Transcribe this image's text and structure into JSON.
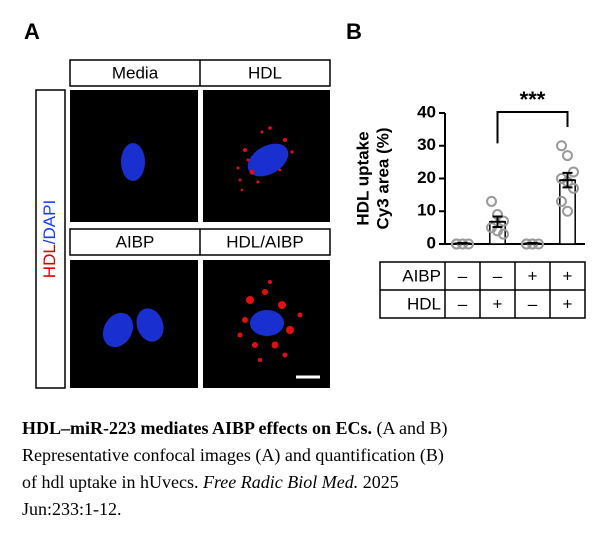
{
  "panel_a": {
    "label": "A",
    "headers": [
      "Media",
      "HDL",
      "AIBP",
      "HDL/AIBP"
    ],
    "stain": [
      "HDL",
      "/DAPI"
    ]
  },
  "panel_b": {
    "label": "B"
  },
  "chart_data": {
    "type": "bar",
    "ylabel": [
      "HDL uptake",
      "Cy3 area (%)"
    ],
    "categories": [
      null,
      null,
      null,
      null
    ],
    "values": [
      0.2,
      6.8,
      0.2,
      19.5
    ],
    "errors": [
      0.1,
      1.6,
      0.1,
      2.2
    ],
    "points": [
      [
        0,
        0,
        0,
        0,
        0
      ],
      [
        13,
        9,
        7,
        5,
        4,
        3
      ],
      [
        0,
        0,
        0,
        0,
        0
      ],
      [
        30,
        27,
        22,
        20,
        19,
        17,
        13,
        10
      ]
    ],
    "bar_color": "#ffffff",
    "edge_color": "#000000",
    "point_color": "#9a9a9a",
    "ylim": [
      0,
      40
    ],
    "yticks": [
      0,
      10,
      20,
      30,
      40
    ],
    "annotation": "***",
    "table": [
      {
        "name": "AIBP",
        "signs": [
          "–",
          "–",
          "+",
          "+"
        ]
      },
      {
        "name": "HDL",
        "signs": [
          "–",
          "+",
          "–",
          "+"
        ]
      }
    ]
  },
  "caption": {
    "title": "HDL–miR-223 mediates AIBP effects on ECs.",
    "line1": "(A and B)",
    "line2": "Representative confocal images (A) and quantification (B)",
    "line3": "of hdl uptake in hUvecs.",
    "journal": "Free Radic Biol Med.",
    "year": "2025",
    "line4": "Jun:233:1-12."
  }
}
